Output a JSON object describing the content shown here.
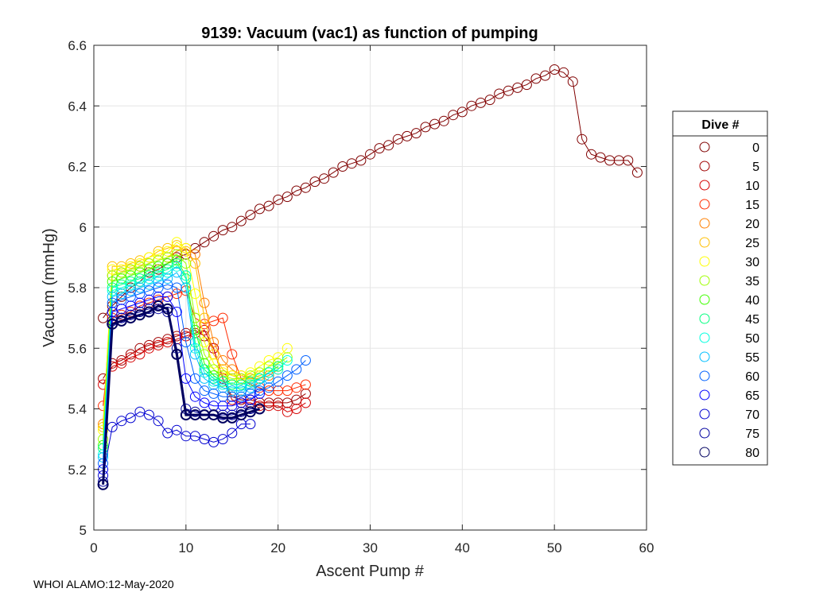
{
  "chart_data": {
    "type": "scatter",
    "title": "9139: Vacuum (vac1) as function of pumping",
    "xlabel": "Ascent Pump #",
    "ylabel": "Vacuum (mmHg)",
    "xlim": [
      0,
      60
    ],
    "ylim": [
      5,
      6.6
    ],
    "xticks": [
      0,
      10,
      20,
      30,
      40,
      50,
      60
    ],
    "yticks": [
      5,
      5.2,
      5.4,
      5.6,
      5.8,
      6,
      6.2,
      6.4,
      6.6
    ],
    "ytick_labels": [
      "5",
      "5.2",
      "5.4",
      "5.6",
      "5.8",
      "6",
      "6.2",
      "6.4",
      "6.6"
    ],
    "grid": true,
    "legend": {
      "title": "Dive #",
      "placement": "right",
      "entries": [
        "0",
        "5",
        "10",
        "15",
        "20",
        "25",
        "30",
        "35",
        "40",
        "45",
        "50",
        "55",
        "60",
        "65",
        "70",
        "75",
        "80"
      ]
    },
    "series": [
      {
        "name": "0",
        "color": "#800000",
        "x": [
          1,
          2,
          3,
          4,
          5,
          6,
          7,
          8,
          9,
          10,
          11,
          12,
          13,
          14,
          15,
          16,
          17,
          18,
          19,
          20,
          21,
          22,
          23,
          24,
          25,
          26,
          27,
          28,
          29,
          30,
          31,
          32,
          33,
          34,
          35,
          36,
          37,
          38,
          39,
          40,
          41,
          42,
          43,
          44,
          45,
          46,
          47,
          48,
          49,
          50,
          51,
          52,
          53,
          54,
          55,
          56,
          57,
          58,
          59
        ],
        "values": [
          5.7,
          5.74,
          5.77,
          5.8,
          5.82,
          5.85,
          5.86,
          5.88,
          5.9,
          5.91,
          5.93,
          5.95,
          5.97,
          5.99,
          6.0,
          6.02,
          6.04,
          6.06,
          6.07,
          6.09,
          6.1,
          6.12,
          6.13,
          6.15,
          6.16,
          6.18,
          6.2,
          6.21,
          6.22,
          6.24,
          6.26,
          6.27,
          6.29,
          6.3,
          6.31,
          6.33,
          6.34,
          6.35,
          6.37,
          6.38,
          6.4,
          6.41,
          6.42,
          6.44,
          6.45,
          6.46,
          6.47,
          6.49,
          6.5,
          6.52,
          6.51,
          6.48,
          6.29,
          6.24,
          6.23,
          6.22,
          6.22,
          6.22,
          6.18
        ]
      },
      {
        "name": "5",
        "color": "#a00000",
        "x": [
          1,
          2,
          3,
          4,
          5,
          6,
          7,
          8,
          9,
          10,
          11,
          12,
          13,
          14,
          15,
          16,
          17,
          18,
          19,
          20,
          21,
          22,
          23
        ],
        "values": [
          5.5,
          5.55,
          5.56,
          5.58,
          5.6,
          5.61,
          5.62,
          5.63,
          5.64,
          5.65,
          5.66,
          5.64,
          5.6,
          5.5,
          5.44,
          5.43,
          5.43,
          5.42,
          5.42,
          5.42,
          5.42,
          5.43,
          5.45
        ]
      },
      {
        "name": "10",
        "color": "#d50000",
        "x": [
          1,
          2,
          3,
          4,
          5,
          6,
          7,
          8,
          9,
          10,
          11,
          12,
          13,
          14,
          15,
          16,
          17,
          18,
          19,
          20,
          21,
          22,
          23
        ],
        "values": [
          5.48,
          5.54,
          5.55,
          5.57,
          5.58,
          5.6,
          5.61,
          5.62,
          5.63,
          5.64,
          5.65,
          5.66,
          5.6,
          5.5,
          5.43,
          5.42,
          5.42,
          5.41,
          5.41,
          5.41,
          5.39,
          5.4,
          5.42
        ]
      },
      {
        "name": "15",
        "color": "#ff2a00",
        "x": [
          1,
          2,
          3,
          4,
          5,
          6,
          7,
          8,
          9,
          10,
          11,
          12,
          13,
          14,
          15,
          16,
          17,
          18,
          19,
          20,
          21,
          22,
          23
        ],
        "values": [
          5.41,
          5.7,
          5.71,
          5.72,
          5.74,
          5.75,
          5.76,
          5.77,
          5.78,
          5.79,
          5.7,
          5.68,
          5.69,
          5.7,
          5.58,
          5.5,
          5.48,
          5.47,
          5.46,
          5.46,
          5.46,
          5.47,
          5.48
        ]
      },
      {
        "name": "20",
        "color": "#ff7f00",
        "x": [
          1,
          2,
          3,
          4,
          5,
          6,
          7,
          8,
          9,
          10,
          11,
          12,
          13,
          14,
          15,
          16,
          17,
          18,
          19,
          20
        ],
        "values": [
          5.35,
          5.84,
          5.85,
          5.86,
          5.87,
          5.88,
          5.89,
          5.9,
          5.92,
          5.93,
          5.91,
          5.75,
          5.62,
          5.56,
          5.53,
          5.51,
          5.5,
          5.5,
          5.51,
          5.53
        ]
      },
      {
        "name": "25",
        "color": "#ffbf00",
        "x": [
          1,
          2,
          3,
          4,
          5,
          6,
          7,
          8,
          9,
          10,
          11,
          12,
          13,
          14,
          15,
          16,
          17,
          18,
          19,
          20
        ],
        "values": [
          5.34,
          5.87,
          5.87,
          5.88,
          5.89,
          5.9,
          5.92,
          5.93,
          5.94,
          5.92,
          5.88,
          5.7,
          5.58,
          5.53,
          5.51,
          5.5,
          5.5,
          5.51,
          5.52,
          5.55
        ]
      },
      {
        "name": "30",
        "color": "#ffff00",
        "x": [
          1,
          2,
          3,
          4,
          5,
          6,
          7,
          8,
          9,
          10,
          11,
          12,
          13,
          14,
          15,
          16,
          17,
          18,
          19,
          20,
          21
        ],
        "values": [
          5.33,
          5.86,
          5.86,
          5.87,
          5.88,
          5.9,
          5.91,
          5.92,
          5.95,
          5.93,
          5.78,
          5.62,
          5.55,
          5.52,
          5.51,
          5.51,
          5.52,
          5.54,
          5.56,
          5.57,
          5.6
        ]
      },
      {
        "name": "35",
        "color": "#9fff00",
        "x": [
          1,
          2,
          3,
          4,
          5,
          6,
          7,
          8,
          9,
          10,
          11,
          12,
          13,
          14,
          15,
          16,
          17,
          18,
          19,
          20,
          21
        ],
        "values": [
          5.3,
          5.84,
          5.85,
          5.86,
          5.87,
          5.88,
          5.89,
          5.9,
          5.91,
          5.88,
          5.7,
          5.58,
          5.53,
          5.51,
          5.5,
          5.5,
          5.51,
          5.52,
          5.54,
          5.55,
          5.57
        ]
      },
      {
        "name": "40",
        "color": "#3fff00",
        "x": [
          1,
          2,
          3,
          4,
          5,
          6,
          7,
          8,
          9,
          10,
          11,
          12,
          13,
          14,
          15,
          16,
          17,
          18,
          19,
          20
        ],
        "values": [
          5.28,
          5.82,
          5.83,
          5.84,
          5.85,
          5.86,
          5.87,
          5.88,
          5.89,
          5.84,
          5.66,
          5.55,
          5.51,
          5.49,
          5.48,
          5.48,
          5.49,
          5.5,
          5.52,
          5.54
        ]
      },
      {
        "name": "45",
        "color": "#00ff7f",
        "x": [
          1,
          2,
          3,
          4,
          5,
          6,
          7,
          8,
          9,
          10,
          11,
          12,
          13,
          14,
          15,
          16,
          17,
          18,
          19,
          20
        ],
        "values": [
          5.27,
          5.8,
          5.81,
          5.82,
          5.83,
          5.84,
          5.85,
          5.86,
          5.88,
          5.83,
          5.62,
          5.53,
          5.5,
          5.49,
          5.48,
          5.48,
          5.49,
          5.5,
          5.52,
          5.54
        ]
      },
      {
        "name": "50",
        "color": "#00ffdf",
        "x": [
          1,
          2,
          3,
          4,
          5,
          6,
          7,
          8,
          9,
          10,
          11,
          12,
          13,
          14,
          15,
          16,
          17,
          18,
          19,
          20,
          21
        ],
        "values": [
          5.25,
          5.79,
          5.8,
          5.81,
          5.82,
          5.83,
          5.84,
          5.85,
          5.87,
          5.84,
          5.6,
          5.52,
          5.49,
          5.48,
          5.47,
          5.47,
          5.48,
          5.5,
          5.52,
          5.53,
          5.56
        ]
      },
      {
        "name": "55",
        "color": "#00bfff",
        "x": [
          1,
          2,
          3,
          4,
          5,
          6,
          7,
          8,
          9,
          10,
          11,
          12,
          13,
          14,
          15,
          16,
          17,
          18,
          19
        ],
        "values": [
          5.24,
          5.77,
          5.78,
          5.79,
          5.8,
          5.81,
          5.82,
          5.83,
          5.85,
          5.8,
          5.58,
          5.5,
          5.48,
          5.47,
          5.46,
          5.46,
          5.47,
          5.48,
          5.5
        ]
      },
      {
        "name": "60",
        "color": "#0060ff",
        "x": [
          1,
          2,
          3,
          4,
          5,
          6,
          7,
          8,
          9,
          10,
          11,
          12,
          13,
          14,
          15,
          16,
          17,
          18,
          19,
          20,
          21,
          22,
          23
        ],
        "values": [
          5.22,
          5.75,
          5.76,
          5.77,
          5.78,
          5.79,
          5.8,
          5.81,
          5.8,
          5.62,
          5.5,
          5.46,
          5.45,
          5.44,
          5.44,
          5.44,
          5.45,
          5.46,
          5.47,
          5.49,
          5.51,
          5.53,
          5.56
        ]
      },
      {
        "name": "65",
        "color": "#0000ff",
        "x": [
          1,
          2,
          3,
          4,
          5,
          6,
          7,
          8,
          9,
          10,
          11,
          12,
          13,
          14,
          15,
          16,
          17,
          18
        ],
        "values": [
          5.2,
          5.72,
          5.73,
          5.74,
          5.75,
          5.76,
          5.77,
          5.77,
          5.72,
          5.5,
          5.44,
          5.42,
          5.41,
          5.41,
          5.41,
          5.42,
          5.43,
          5.45
        ]
      },
      {
        "name": "70",
        "color": "#0000d0",
        "x": [
          1,
          2,
          3,
          4,
          5,
          6,
          7,
          8,
          9,
          10,
          11,
          12,
          13,
          14,
          15,
          16,
          17
        ],
        "values": [
          5.18,
          5.34,
          5.36,
          5.37,
          5.39,
          5.38,
          5.36,
          5.32,
          5.33,
          5.31,
          5.31,
          5.3,
          5.29,
          5.3,
          5.32,
          5.35,
          5.35
        ]
      },
      {
        "name": "75",
        "color": "#0000a0",
        "x": [
          1,
          2,
          3,
          4,
          5,
          6,
          7,
          8,
          9,
          10,
          11,
          12,
          13,
          14,
          15,
          16,
          17,
          18
        ],
        "values": [
          5.16,
          5.69,
          5.7,
          5.71,
          5.72,
          5.73,
          5.73,
          5.72,
          5.6,
          5.4,
          5.39,
          5.38,
          5.38,
          5.38,
          5.38,
          5.39,
          5.4,
          5.4
        ]
      },
      {
        "name": "80",
        "color": "#000060",
        "x": [
          1,
          2,
          3,
          4,
          5,
          6,
          7,
          8,
          9,
          10,
          11,
          12,
          13,
          14,
          15,
          16,
          17,
          18
        ],
        "values": [
          5.15,
          5.68,
          5.69,
          5.7,
          5.71,
          5.72,
          5.74,
          5.73,
          5.58,
          5.38,
          5.38,
          5.38,
          5.38,
          5.37,
          5.37,
          5.38,
          5.39,
          5.4
        ]
      }
    ]
  },
  "footer": {
    "text": "WHOI ALAMO:12-May-2020"
  }
}
